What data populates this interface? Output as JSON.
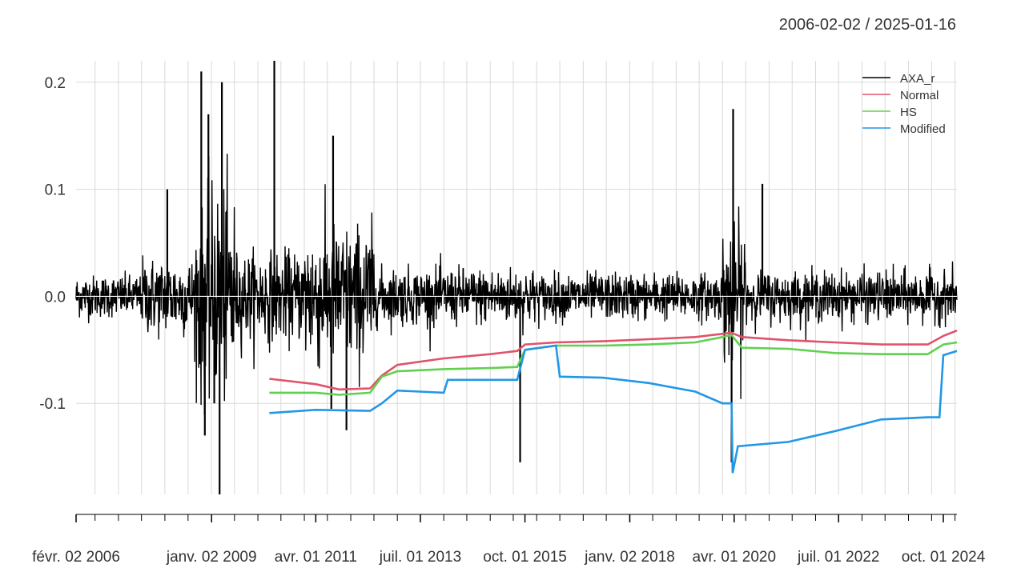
{
  "chart_data": {
    "type": "line",
    "date_range": "2006-02-02 / 2025-01-16",
    "x_start": "2006-02-02",
    "x_end": "2025-01-16",
    "ylim": [
      -0.185,
      0.22
    ],
    "y_ticks": [
      -0.1,
      0.0,
      0.1,
      0.2
    ],
    "y_tick_labels": [
      "-0.1",
      "0.0",
      "0.1",
      "0.2"
    ],
    "x_tick_labels": [
      {
        "date": "2006-02-02",
        "label": "févr. 02 2006"
      },
      {
        "date": "2009-01-02",
        "label": "janv. 02 2009"
      },
      {
        "date": "2011-04-01",
        "label": "avr. 01 2011"
      },
      {
        "date": "2013-07-01",
        "label": "juil. 01 2013"
      },
      {
        "date": "2015-10-01",
        "label": "oct. 01 2015"
      },
      {
        "date": "2018-01-02",
        "label": "janv. 02 2018"
      },
      {
        "date": "2020-04-01",
        "label": "avr. 01 2020"
      },
      {
        "date": "2022-07-01",
        "label": "juil. 01 2022"
      },
      {
        "date": "2024-10-01",
        "label": "oct. 01 2024"
      }
    ],
    "grid": true,
    "legend_position": "top-right",
    "series": [
      {
        "name": "AXA_r",
        "color": "#000000",
        "kind": "returns",
        "volatility_regimes": [
          {
            "from": "2006-02-02",
            "to": "2007-06-30",
            "typical_abs": 0.012
          },
          {
            "from": "2007-07-01",
            "to": "2008-08-31",
            "typical_abs": 0.022
          },
          {
            "from": "2008-09-01",
            "to": "2009-06-30",
            "typical_abs": 0.06
          },
          {
            "from": "2009-07-01",
            "to": "2010-12-31",
            "typical_abs": 0.025
          },
          {
            "from": "2011-01-01",
            "to": "2012-06-30",
            "typical_abs": 0.04
          },
          {
            "from": "2012-07-01",
            "to": "2015-12-31",
            "typical_abs": 0.016
          },
          {
            "from": "2016-01-01",
            "to": "2019-12-31",
            "typical_abs": 0.013
          },
          {
            "from": "2020-01-01",
            "to": "2020-06-30",
            "typical_abs": 0.04
          },
          {
            "from": "2020-07-01",
            "to": "2025-01-16",
            "typical_abs": 0.014
          }
        ],
        "extremes": [
          {
            "date": "2008-01-20",
            "value": 0.1
          },
          {
            "date": "2008-10-13",
            "value": 0.21
          },
          {
            "date": "2008-11-10",
            "value": -0.13
          },
          {
            "date": "2008-12-08",
            "value": 0.17
          },
          {
            "date": "2009-01-23",
            "value": -0.1
          },
          {
            "date": "2009-03-24",
            "value": 0.2
          },
          {
            "date": "2009-03-06",
            "value": -0.185
          },
          {
            "date": "2010-05-10",
            "value": 0.22
          },
          {
            "date": "2011-08-15",
            "value": 0.15
          },
          {
            "date": "2011-08-01",
            "value": -0.105
          },
          {
            "date": "2011-11-28",
            "value": -0.125
          },
          {
            "date": "2015-08-24",
            "value": -0.155
          },
          {
            "date": "2020-03-12",
            "value": -0.155
          },
          {
            "date": "2020-03-24",
            "value": 0.175
          },
          {
            "date": "2020-11-09",
            "value": 0.105
          }
        ]
      },
      {
        "name": "Normal",
        "color": "#DF536B",
        "kind": "var",
        "points": [
          [
            "2010-04-01",
            -0.077
          ],
          [
            "2011-04-01",
            -0.082
          ],
          [
            "2011-10-01",
            -0.087
          ],
          [
            "2012-06-01",
            -0.086
          ],
          [
            "2012-09-01",
            -0.074
          ],
          [
            "2013-01-01",
            -0.064
          ],
          [
            "2014-01-01",
            -0.058
          ],
          [
            "2015-01-01",
            -0.054
          ],
          [
            "2015-08-01",
            -0.051
          ],
          [
            "2015-10-01",
            -0.045
          ],
          [
            "2016-06-01",
            -0.043
          ],
          [
            "2017-06-01",
            -0.042
          ],
          [
            "2018-06-01",
            -0.04
          ],
          [
            "2019-06-01",
            -0.038
          ],
          [
            "2019-12-31",
            -0.035
          ],
          [
            "2020-03-10",
            -0.034
          ],
          [
            "2020-06-01",
            -0.038
          ],
          [
            "2021-06-01",
            -0.041
          ],
          [
            "2022-06-01",
            -0.043
          ],
          [
            "2023-06-01",
            -0.045
          ],
          [
            "2024-06-01",
            -0.045
          ],
          [
            "2024-10-01",
            -0.037
          ],
          [
            "2025-01-16",
            -0.032
          ]
        ]
      },
      {
        "name": "HS",
        "color": "#61D04F",
        "kind": "var",
        "points": [
          [
            "2010-04-01",
            -0.09
          ],
          [
            "2011-04-01",
            -0.09
          ],
          [
            "2011-10-01",
            -0.092
          ],
          [
            "2012-06-01",
            -0.09
          ],
          [
            "2012-09-01",
            -0.075
          ],
          [
            "2013-01-01",
            -0.07
          ],
          [
            "2014-01-01",
            -0.068
          ],
          [
            "2015-01-01",
            -0.067
          ],
          [
            "2015-08-01",
            -0.066
          ],
          [
            "2015-10-01",
            -0.05
          ],
          [
            "2016-06-01",
            -0.046
          ],
          [
            "2017-06-01",
            -0.046
          ],
          [
            "2018-06-01",
            -0.045
          ],
          [
            "2019-06-01",
            -0.043
          ],
          [
            "2019-12-31",
            -0.038
          ],
          [
            "2020-03-10",
            -0.036
          ],
          [
            "2020-06-01",
            -0.048
          ],
          [
            "2021-06-01",
            -0.049
          ],
          [
            "2022-06-01",
            -0.053
          ],
          [
            "2023-06-01",
            -0.054
          ],
          [
            "2024-06-01",
            -0.054
          ],
          [
            "2024-10-01",
            -0.045
          ],
          [
            "2025-01-16",
            -0.043
          ]
        ]
      },
      {
        "name": "Modified",
        "color": "#2297E6",
        "kind": "var",
        "points": [
          [
            "2010-04-01",
            -0.109
          ],
          [
            "2011-04-01",
            -0.106
          ],
          [
            "2012-06-01",
            -0.107
          ],
          [
            "2012-09-01",
            -0.1
          ],
          [
            "2013-01-01",
            -0.088
          ],
          [
            "2014-01-01",
            -0.09
          ],
          [
            "2014-02-01",
            -0.078
          ],
          [
            "2015-08-01",
            -0.078
          ],
          [
            "2015-10-01",
            -0.05
          ],
          [
            "2016-06-01",
            -0.046
          ],
          [
            "2016-07-01",
            -0.075
          ],
          [
            "2017-06-01",
            -0.076
          ],
          [
            "2018-06-01",
            -0.081
          ],
          [
            "2019-06-01",
            -0.089
          ],
          [
            "2019-12-31",
            -0.1
          ],
          [
            "2020-03-12",
            -0.1
          ],
          [
            "2020-03-20",
            -0.165
          ],
          [
            "2020-05-01",
            -0.14
          ],
          [
            "2021-06-01",
            -0.136
          ],
          [
            "2022-06-01",
            -0.126
          ],
          [
            "2023-06-01",
            -0.115
          ],
          [
            "2024-06-01",
            -0.113
          ],
          [
            "2024-09-01",
            -0.113
          ],
          [
            "2024-10-01",
            -0.055
          ],
          [
            "2025-01-16",
            -0.051
          ]
        ]
      }
    ]
  }
}
